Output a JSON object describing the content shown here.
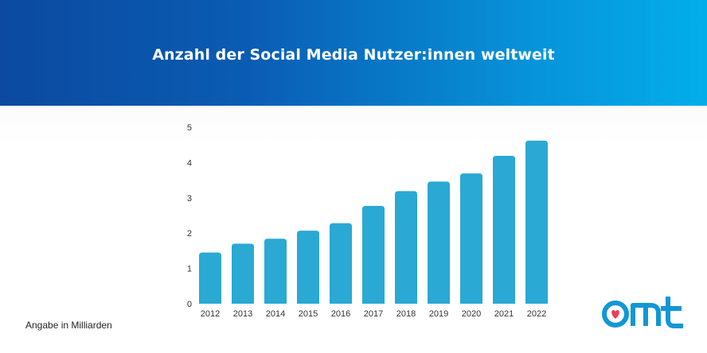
{
  "header": {
    "title": "Anzahl der Social Media Nutzer:innen weltweit"
  },
  "footnote": "Angabe in Milliarden",
  "logo": {
    "icon": "omt-logo-icon",
    "heart_color": "#e8405a",
    "brand_color": "#1197d6"
  },
  "colors": {
    "bar": "#29a9d3"
  },
  "chart_data": {
    "type": "bar",
    "categories": [
      "2012",
      "2013",
      "2014",
      "2015",
      "2016",
      "2017",
      "2018",
      "2019",
      "2020",
      "2021",
      "2022"
    ],
    "values": [
      1.45,
      1.7,
      1.84,
      2.07,
      2.28,
      2.77,
      3.19,
      3.46,
      3.69,
      4.19,
      4.62
    ],
    "title": "Anzahl der Social Media Nutzer:innen weltweit",
    "xlabel": "",
    "ylabel": "",
    "ylim": [
      0,
      5
    ],
    "yticks": [
      "0",
      "1",
      "2",
      "3",
      "4",
      "5"
    ],
    "grid": false
  }
}
